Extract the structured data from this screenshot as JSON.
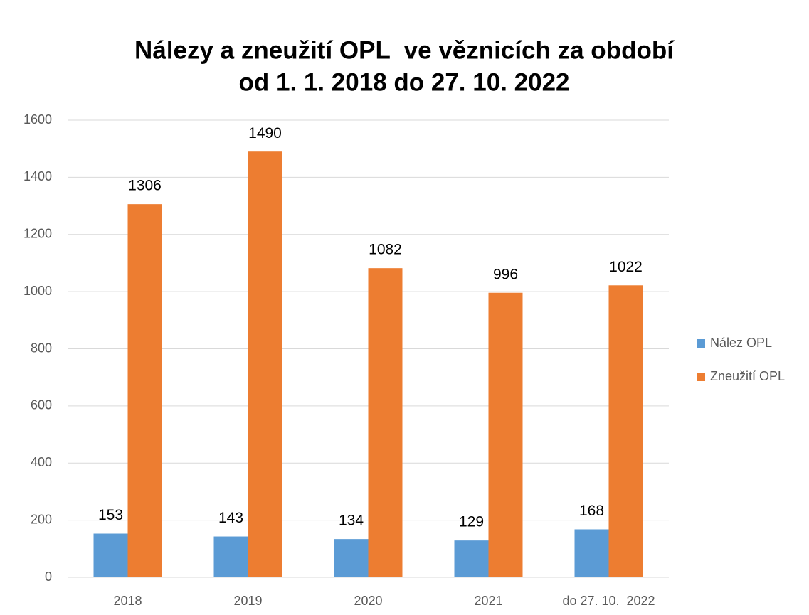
{
  "chart_data": {
    "type": "bar",
    "title": [
      "Nálezy a zneužití OPL  ve věznicích za období",
      "od 1. 1. 2018 do 27. 10. 2022"
    ],
    "categories": [
      "2018",
      "2019",
      "2020",
      "2021",
      "do 27. 10.  2022"
    ],
    "series": [
      {
        "name": "Nález OPL",
        "color": "#5b9bd5",
        "values": [
          153,
          143,
          134,
          129,
          168
        ]
      },
      {
        "name": "Zneužití OPL",
        "color": "#ed7d31",
        "values": [
          1306,
          1490,
          1082,
          996,
          1022
        ]
      }
    ],
    "ylim": [
      0,
      1600
    ],
    "yticks": [
      0,
      200,
      400,
      600,
      800,
      1000,
      1200,
      1400,
      1600
    ],
    "grid": true,
    "legend": "right"
  }
}
